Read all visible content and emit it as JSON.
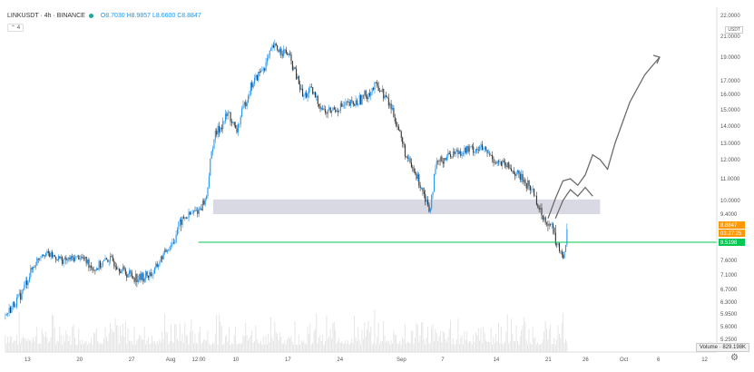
{
  "header": {
    "symbol_line": "LINKUSDT · 4h · BINANCE",
    "ohlc_line": "O8.7030 H8.9857 L8.6600 C8.8847"
  },
  "indicator_badge": "4",
  "currency_badge": "USDT",
  "volume_label": "Volume · 829.198K",
  "colors": {
    "up_candle": "#2196f3",
    "down_candle": "#333333",
    "support_line": "#00c853",
    "price_tag": "#ff9800",
    "green_tag": "#00c853",
    "zone": "#d9d9e3",
    "drawing": "#6b6b6b"
  },
  "chart_data": {
    "type": "candlestick",
    "price_axis_labels": [
      "22.0000",
      "21.0000",
      "19.0000",
      "17.0000",
      "16.0000",
      "15.0000",
      "14.0000",
      "13.0000",
      "12.0000",
      "11.0000",
      "10.0000",
      "9.4000",
      "8.8847",
      "8.5198",
      "7.6000",
      "7.1000",
      "6.7000",
      "6.3000",
      "5.9500",
      "5.6000",
      "5.2500"
    ],
    "price_ticks": [
      22,
      21,
      19,
      17,
      16,
      15,
      14,
      13,
      12,
      11,
      10,
      9.4,
      7.6,
      7.1,
      6.7,
      6.3,
      5.95,
      5.6,
      5.25
    ],
    "time_labels": [
      {
        "label": "13",
        "day": 13
      },
      {
        "label": "20",
        "day": 20
      },
      {
        "label": "27",
        "day": 27
      },
      {
        "label": "Aug",
        "day": 32
      },
      {
        "label": "12:00",
        "day": 35.5
      },
      {
        "label": "10",
        "day": 41
      },
      {
        "label": "17",
        "day": 48
      },
      {
        "label": "24",
        "day": 55
      },
      {
        "label": "Sep",
        "day": 63
      },
      {
        "label": "7",
        "day": 69
      },
      {
        "label": "14",
        "day": 76
      },
      {
        "label": "21",
        "day": 83
      },
      {
        "label": "26",
        "day": 88
      },
      {
        "label": "Oct",
        "day": 93
      },
      {
        "label": "6",
        "day": 98
      },
      {
        "label": "12",
        "day": 104
      }
    ],
    "price_path": [
      [
        10,
        5.9
      ],
      [
        12,
        6.5
      ],
      [
        15,
        8.0
      ],
      [
        18,
        7.6
      ],
      [
        20,
        7.8
      ],
      [
        22,
        7.3
      ],
      [
        24,
        7.7
      ],
      [
        26,
        7.2
      ],
      [
        28,
        7.0
      ],
      [
        30,
        7.2
      ],
      [
        32,
        8.3
      ],
      [
        34,
        9.2
      ],
      [
        36,
        9.6
      ],
      [
        37,
        10.1
      ],
      [
        38,
        13.3
      ],
      [
        40,
        14.8
      ],
      [
        41,
        13.6
      ],
      [
        43,
        16.6
      ],
      [
        45,
        18.4
      ],
      [
        46,
        20.0
      ],
      [
        48,
        19.3
      ],
      [
        50,
        15.8
      ],
      [
        51,
        16.3
      ],
      [
        53,
        14.8
      ],
      [
        55,
        15.2
      ],
      [
        57,
        15.4
      ],
      [
        59,
        16.2
      ],
      [
        60,
        16.7
      ],
      [
        62,
        15.0
      ],
      [
        63,
        13.6
      ],
      [
        64,
        12.0
      ],
      [
        65,
        11.3
      ],
      [
        66,
        10.6
      ],
      [
        67,
        9.6
      ],
      [
        68,
        11.8
      ],
      [
        70,
        12.4
      ],
      [
        72,
        12.6
      ],
      [
        74,
        12.7
      ],
      [
        76,
        11.9
      ],
      [
        78,
        11.5
      ],
      [
        80,
        10.8
      ],
      [
        81,
        10.4
      ],
      [
        82,
        9.4
      ],
      [
        83,
        9.0
      ],
      [
        84,
        8.5
      ],
      [
        85,
        7.8
      ],
      [
        85.5,
        8.8847
      ]
    ],
    "current_price": 8.8847,
    "second_price": 8.5198,
    "countdown": "03:27:25",
    "support_level": 8.5198,
    "zone": {
      "x_start": 38,
      "x_end": 90,
      "low": 9.4,
      "high": 10.05
    },
    "projections": [
      [
        [
          83,
          9.2
        ],
        [
          84,
          10.1
        ],
        [
          85,
          10.9
        ],
        [
          86,
          11.0
        ],
        [
          87,
          10.7
        ],
        [
          88,
          11.2
        ],
        [
          89,
          12.3
        ],
        [
          90,
          12.0
        ],
        [
          91,
          11.5
        ],
        [
          92,
          13.0
        ],
        [
          94,
          15.5
        ],
        [
          96,
          17.5
        ],
        [
          98,
          19.0
        ]
      ],
      [
        [
          84,
          9.2
        ],
        [
          85,
          10.0
        ],
        [
          86,
          10.5
        ],
        [
          87,
          10.2
        ],
        [
          88,
          10.6
        ],
        [
          89,
          10.2
        ]
      ]
    ]
  }
}
